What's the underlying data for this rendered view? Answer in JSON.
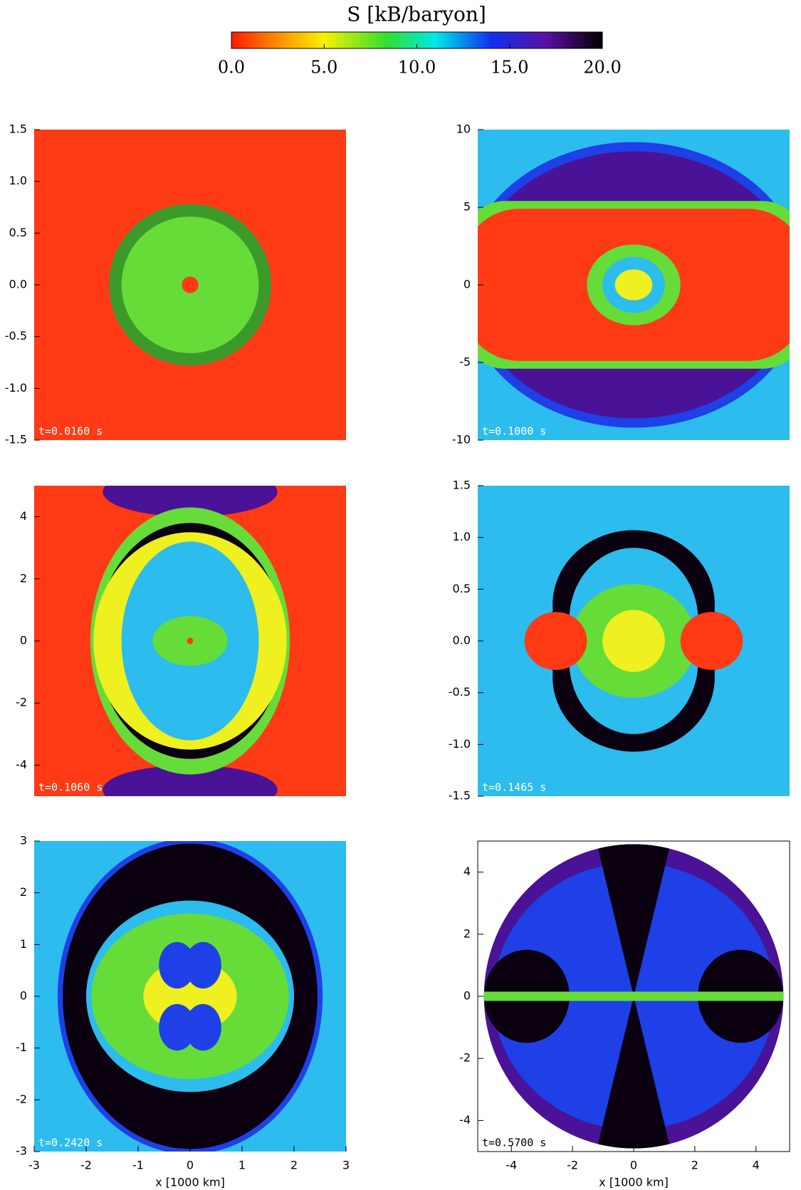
{
  "colorbar": {
    "title": "S [kB/baryon]",
    "lim": [
      0,
      20
    ],
    "ticks": [
      {
        "value": 0,
        "label": "0.0"
      },
      {
        "value": 5,
        "label": "5.0"
      },
      {
        "value": 10,
        "label": "10.0"
      },
      {
        "value": 15,
        "label": "15.0"
      },
      {
        "value": 20,
        "label": "20.0"
      }
    ]
  },
  "chart_data": [
    {
      "type": "heatmap",
      "annotation": "t=0.0160 s",
      "xlim": [
        -1.5,
        1.5
      ],
      "ylim": [
        -1.5,
        1.5
      ],
      "yticks": [
        1.5,
        {
          "value": 1,
          "label": "1.0"
        },
        0.5,
        {
          "value": 0,
          "label": "0.0"
        },
        -0.5,
        {
          "value": -1,
          "label": "-1.0"
        },
        -1.5
      ]
    },
    {
      "type": "heatmap",
      "annotation": "t=0.1000 s",
      "xlim": [
        -10,
        10
      ],
      "ylim": [
        -10,
        10
      ],
      "yticks": [
        10,
        5,
        0,
        -5,
        -10
      ]
    },
    {
      "type": "heatmap",
      "annotation": "t=0.1060 s",
      "xlim": [
        -5,
        5
      ],
      "ylim": [
        -5,
        5
      ],
      "yticks": [
        4,
        2,
        0,
        -2,
        -4
      ]
    },
    {
      "type": "heatmap",
      "annotation": "t=0.1465 s",
      "xlim": [
        -1.5,
        1.5
      ],
      "ylim": [
        -1.5,
        1.5
      ],
      "yticks": [
        1.5,
        {
          "value": 1,
          "label": "1.0"
        },
        0.5,
        {
          "value": 0,
          "label": "0.0"
        },
        -0.5,
        {
          "value": -1,
          "label": "-1.0"
        },
        -1.5
      ]
    },
    {
      "type": "heatmap",
      "annotation": "t=0.2420 s",
      "xlim": [
        -3,
        3
      ],
      "ylim": [
        -3,
        3
      ],
      "yticks": [
        3,
        2,
        1,
        0,
        -1,
        -2,
        -3
      ],
      "xticks": [
        -3,
        -2,
        -1,
        0,
        1,
        2,
        3
      ],
      "xlabel": "x [1000 km]"
    },
    {
      "type": "heatmap",
      "annotation": "t=0.5700 s",
      "xlim": [
        -5.1,
        5.1
      ],
      "ylim": [
        -5,
        5
      ],
      "yticks": [
        4,
        2,
        0,
        -2,
        -4
      ],
      "xticks": [
        -4,
        -2,
        0,
        2,
        4
      ],
      "xlabel": "x [1000 km]"
    }
  ]
}
